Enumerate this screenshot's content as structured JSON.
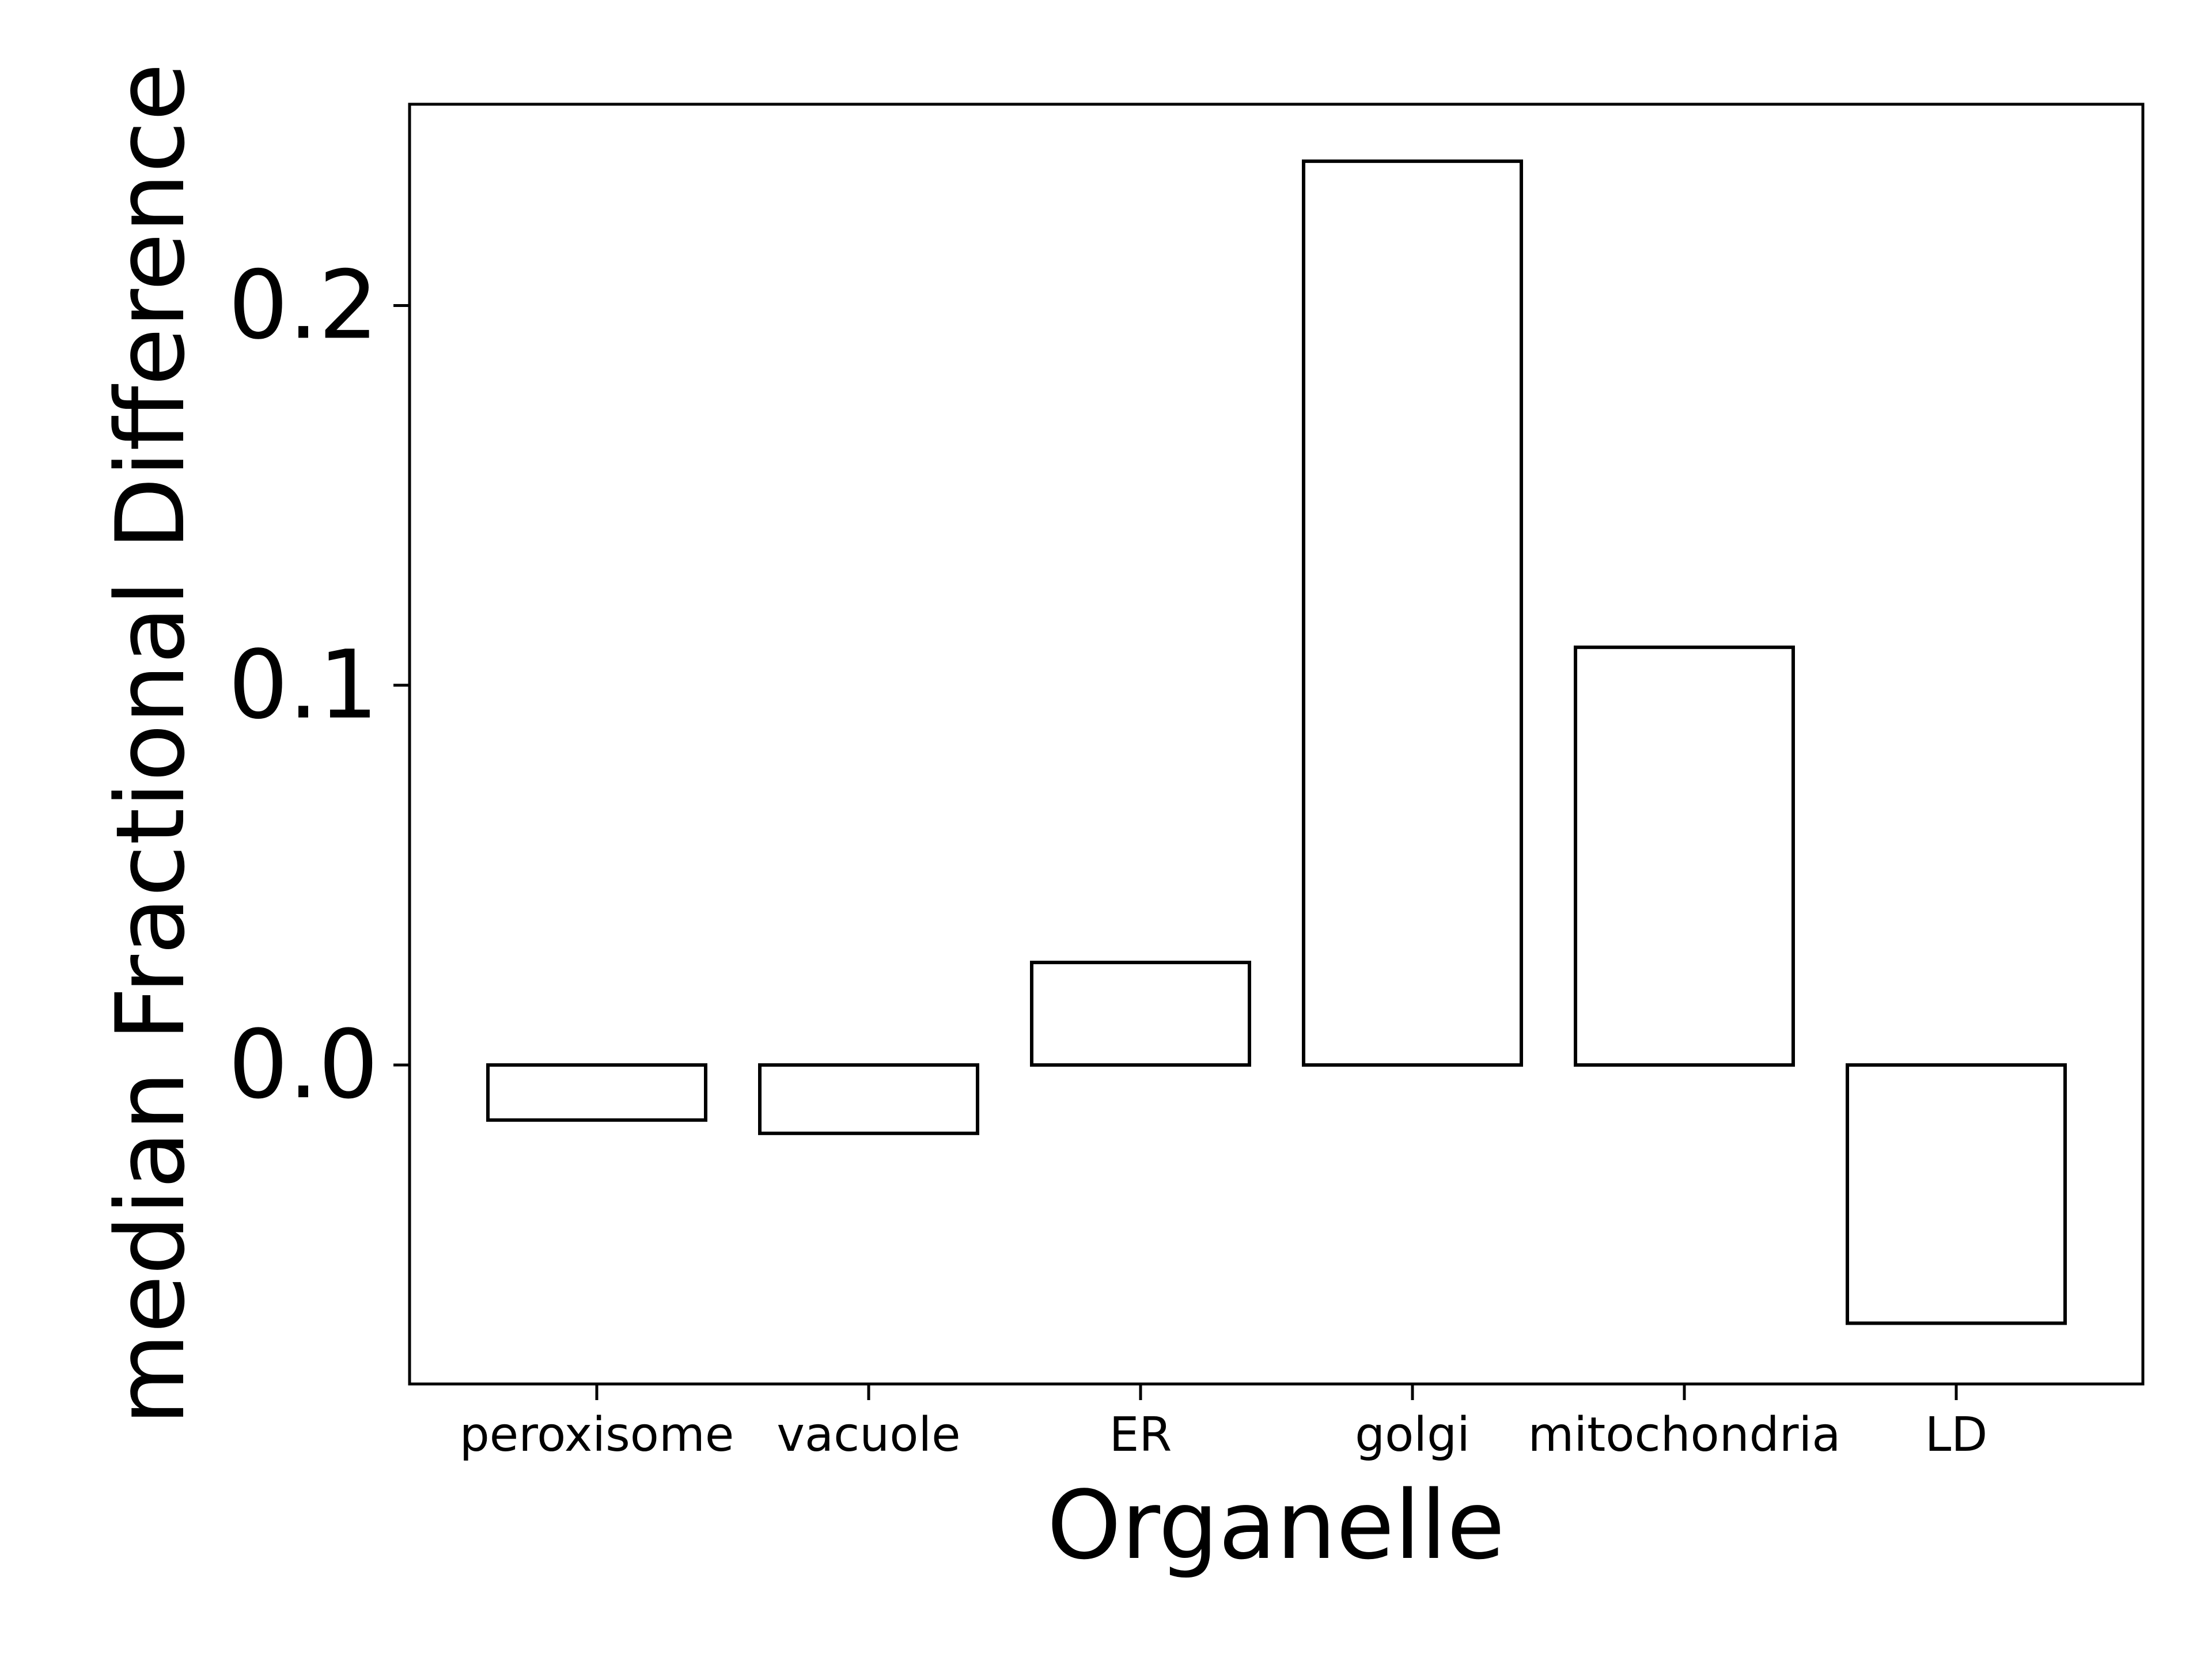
{
  "chart_data": {
    "type": "bar",
    "title": "",
    "xlabel": "Organelle",
    "ylabel": "median Fractional Difference",
    "categories": [
      "peroxisome",
      "vacuole",
      "ER",
      "golgi",
      "mitochondria",
      "LD"
    ],
    "values": [
      -0.0145,
      -0.018,
      0.027,
      0.238,
      0.11,
      -0.068
    ],
    "ylim": [
      -0.084,
      0.253
    ],
    "yticks": [
      0.0,
      0.1,
      0.2
    ],
    "ytick_labels": [
      "0.0",
      "0.1",
      "0.2"
    ],
    "bar_fill": "#ffffff",
    "bar_edge": "#000000",
    "grid": false,
    "legend": "none"
  }
}
